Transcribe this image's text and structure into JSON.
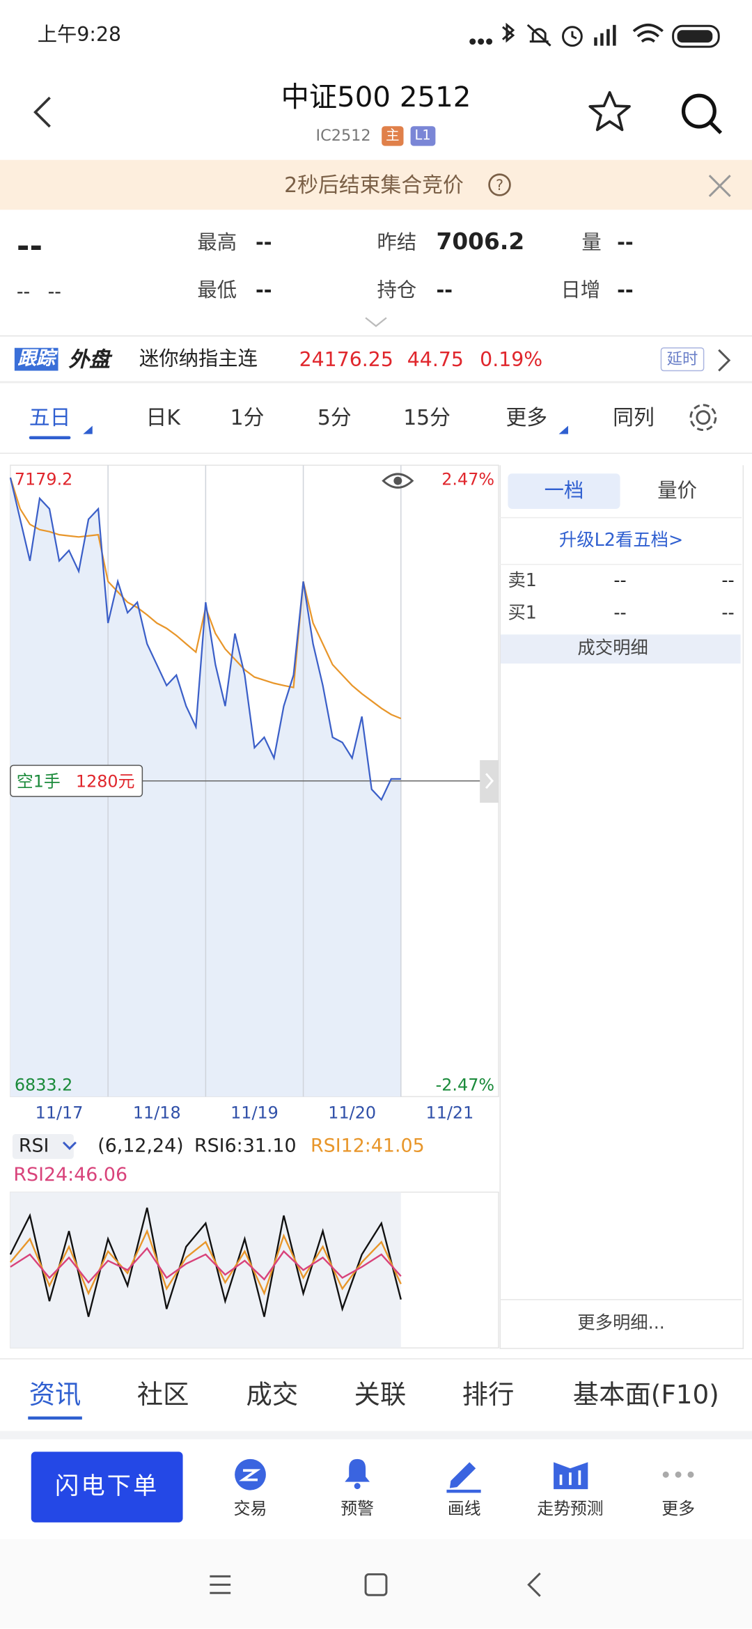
{
  "status_bar": {
    "time": "上午9:28"
  },
  "header": {
    "title": "中证500 2512",
    "code": "IC2512",
    "badges": [
      "主",
      "L1"
    ]
  },
  "notice": {
    "text": "2秒后结束集合竞价"
  },
  "quote": {
    "price": "--",
    "change": "--",
    "change_pct": "--",
    "fields": [
      {
        "label": "最高",
        "value": "--"
      },
      {
        "label": "最低",
        "value": "--"
      },
      {
        "label": "昨结",
        "value": "7006.2"
      },
      {
        "label": "持仓",
        "value": "--"
      },
      {
        "label": "量",
        "value": "--"
      },
      {
        "label": "日增",
        "value": "--"
      }
    ]
  },
  "ticker": {
    "tag": "跟踪",
    "market": "外盘",
    "name": "迷你纳指主连",
    "price": "24176.25",
    "change": "44.75",
    "change_pct": "0.19%",
    "delay": "延时"
  },
  "tabs": [
    "五日",
    "日K",
    "1分",
    "5分",
    "15分",
    "更多",
    "同列"
  ],
  "chart": {
    "ylim": [
      6833.2,
      7179.2
    ],
    "pct_labels": [
      "2.47%",
      "-2.47%"
    ],
    "xlim": [
      0,
      5
    ],
    "day_lines": [
      1,
      2,
      3,
      4
    ],
    "dates": [
      "11/17",
      "11/18",
      "11/19",
      "11/20",
      "11/21"
    ],
    "ref_line": 7006.2,
    "position": "空1手",
    "position_value": "1280元",
    "x": [
      0,
      0.1,
      0.2,
      0.3,
      0.4,
      0.5,
      0.6,
      0.7,
      0.8,
      0.9,
      1,
      1.1,
      1.2,
      1.3,
      1.4,
      1.5,
      1.6,
      1.7,
      1.8,
      1.9,
      2,
      2.1,
      2.2,
      2.3,
      2.4,
      2.5,
      2.6,
      2.7,
      2.8,
      2.9,
      3,
      3.1,
      3.2,
      3.3,
      3.4,
      3.5,
      3.6,
      3.7,
      3.8,
      3.9,
      4
    ],
    "price": [
      7172.4,
      7149.6,
      7126.8,
      7161.0,
      7155.3,
      7126.8,
      7132.5,
      7121.1,
      7149.6,
      7155.3,
      7092.7,
      7115.5,
      7098.4,
      7104.1,
      7081.3,
      7069.9,
      7058.5,
      7064.2,
      7047.2,
      7035.8,
      7104.1,
      7069.9,
      7047.2,
      7087.0,
      7064.2,
      7024.4,
      7030.1,
      7018.7,
      7047.2,
      7064.2,
      7115.5,
      7081.3,
      7058.5,
      7030.1,
      7027.3,
      7018.7,
      7041.5,
      7001.6,
      6995.9,
      7007.3,
      7007.3
    ],
    "average": [
      7172.4,
      7155.3,
      7146.8,
      7143.9,
      7142.8,
      7141.1,
      7140.5,
      7139.9,
      7140.5,
      7141.1,
      7115.5,
      7109.8,
      7104.1,
      7101.2,
      7097.2,
      7092.7,
      7089.8,
      7085.9,
      7081.3,
      7076.8,
      7101.2,
      7087.0,
      7078.5,
      7072.8,
      7067.1,
      7063.1,
      7061.4,
      7059.7,
      7058.5,
      7057.4,
      7115.5,
      7092.7,
      7081.3,
      7069.9,
      7064.2,
      7058.5,
      7054.0,
      7050.0,
      7046.0,
      7042.6,
      7040.4
    ]
  },
  "rsi": {
    "selector": "RSI",
    "params": "(6,12,24)",
    "labels": [
      "RSI6:31.10",
      "RSI12:41.05",
      "RSI24:46.06"
    ],
    "ylim": [
      0,
      100
    ],
    "x": [
      0,
      0.2,
      0.4,
      0.6,
      0.8,
      1,
      1.2,
      1.4,
      1.6,
      1.8,
      2,
      2.2,
      2.4,
      2.6,
      2.8,
      3,
      3.2,
      3.4,
      3.6,
      3.8,
      4
    ],
    "series": [
      {
        "name": "RSI6",
        "color": "#111111",
        "values": [
          60,
          85,
          30,
          75,
          20,
          70,
          40,
          90,
          25,
          65,
          80,
          30,
          70,
          20,
          85,
          35,
          75,
          25,
          60,
          80,
          31.1
        ]
      },
      {
        "name": "RSI12",
        "color": "#e8962a",
        "values": [
          55,
          70,
          40,
          65,
          35,
          62,
          48,
          75,
          38,
          58,
          68,
          42,
          62,
          35,
          72,
          45,
          65,
          38,
          55,
          68,
          41.05
        ]
      },
      {
        "name": "RSI24",
        "color": "#d8427a",
        "values": [
          52,
          60,
          45,
          58,
          42,
          56,
          50,
          64,
          45,
          54,
          60,
          47,
          56,
          44,
          62,
          50,
          58,
          45,
          52,
          60,
          46.06
        ]
      }
    ]
  },
  "order_panel": {
    "tabs": [
      "一档",
      "量价"
    ],
    "upgrade": "升级L2看五档>",
    "rows": [
      {
        "label": "卖1",
        "price": "--",
        "volume": "--"
      },
      {
        "label": "买1",
        "price": "--",
        "volume": "--"
      }
    ],
    "detail_title": "成交明细",
    "more": "更多明细..."
  },
  "bottom_tabs": [
    "资讯",
    "社区",
    "成交",
    "关联",
    "排行",
    "基本面(F10)"
  ],
  "action_bar": {
    "button": "闪电下单",
    "items": [
      "交易",
      "预警",
      "画线",
      "走势预测",
      "更多"
    ]
  }
}
